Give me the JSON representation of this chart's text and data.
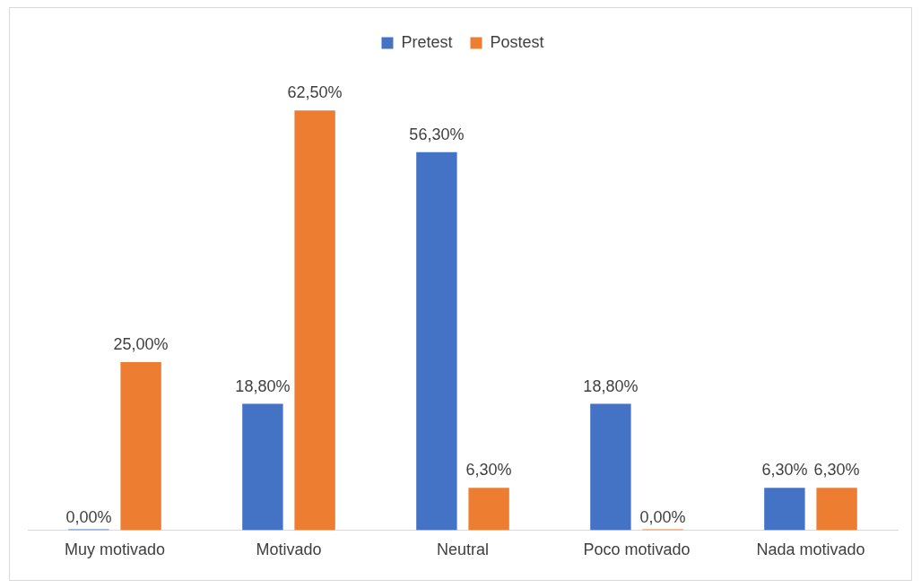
{
  "chart_data": {
    "type": "bar",
    "categories": [
      "Muy motivado",
      "Motivado",
      "Neutral",
      "Poco motivado",
      "Nada motivado"
    ],
    "series": [
      {
        "name": "Pretest",
        "color": "#4472c4",
        "values": [
          0,
          18.8,
          56.3,
          18.8,
          6.3
        ],
        "value_labels": [
          "0,00%",
          "18,80%",
          "56,30%",
          "18,80%",
          "6,30%"
        ]
      },
      {
        "name": "Postest",
        "color": "#ed7d31",
        "values": [
          25,
          62.5,
          6.3,
          0,
          6.3
        ],
        "value_labels": [
          "25,00%",
          "62,50%",
          "6,30%",
          "0,00%",
          "6,30%"
        ]
      }
    ],
    "legend": "top",
    "grid": false
  }
}
